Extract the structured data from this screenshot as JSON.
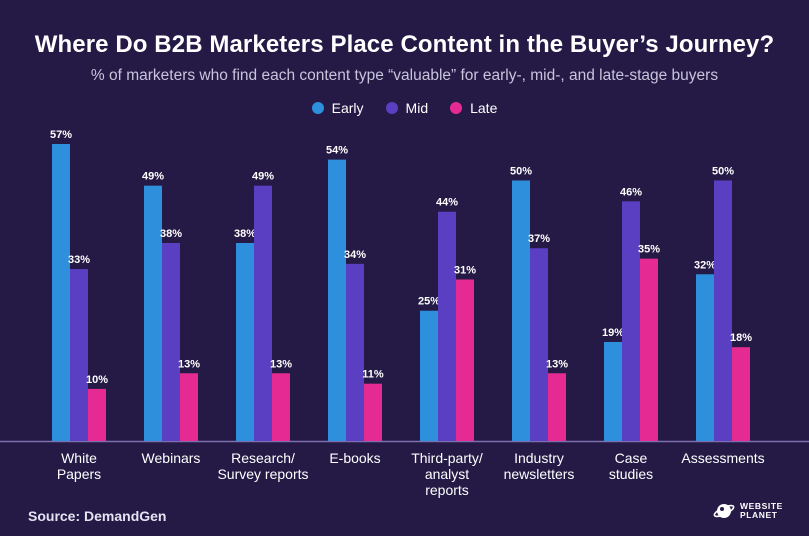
{
  "title": "Where Do B2B Marketers Place Content in the Buyer’s Journey?",
  "subtitle": "% of marketers who find each content type “valuable” for early-, mid-, and late-stage buyers",
  "source": "Source: DemandGen",
  "logo": {
    "line1": "WEBSITE",
    "line2": "PLANET",
    "icon": "website-planet-icon"
  },
  "colors": {
    "background": "#241a45",
    "early": "#2e8fdc",
    "mid": "#5b3fc2",
    "late": "#e62a93",
    "axis": "#7c6fae"
  },
  "chart_data": {
    "type": "bar",
    "title": "Where Do B2B Marketers Place Content in the Buyer’s Journey?",
    "subtitle": "% of marketers who find each content type “valuable” for early-, mid-, and late-stage buyers",
    "categories": [
      [
        "White",
        "Papers"
      ],
      [
        "Webinars"
      ],
      [
        "Research/",
        "Survey reports"
      ],
      [
        "E-books"
      ],
      [
        "Third-party/",
        "analyst",
        "reports"
      ],
      [
        "Industry",
        "newsletters"
      ],
      [
        "Case",
        "studies"
      ],
      [
        "Assessments"
      ]
    ],
    "series": [
      {
        "name": "Early",
        "color": "#2e8fdc",
        "values": [
          57,
          49,
          38,
          54,
          25,
          50,
          19,
          32
        ]
      },
      {
        "name": "Mid",
        "color": "#5b3fc2",
        "values": [
          33,
          38,
          49,
          34,
          44,
          37,
          46,
          50
        ]
      },
      {
        "name": "Late",
        "color": "#e62a93",
        "values": [
          10,
          13,
          13,
          11,
          31,
          13,
          35,
          18
        ]
      }
    ],
    "value_suffix": "%",
    "ylim": [
      0,
      57
    ],
    "legend": "top-center",
    "grid": false
  }
}
